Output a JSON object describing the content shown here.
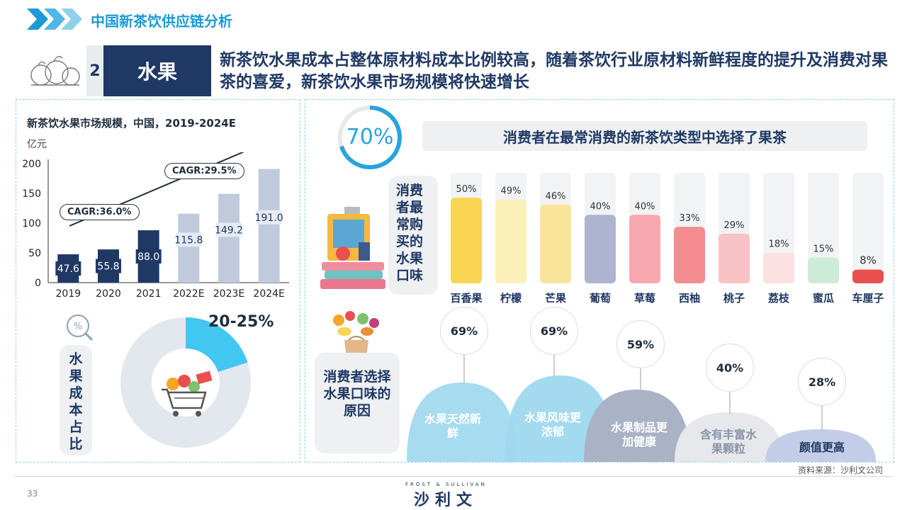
{
  "header": {
    "title": "中国新茶饮供应链分析"
  },
  "section": {
    "number": "2",
    "name": "水果"
  },
  "headline": "新茶饮水果成本占整体原材料成本比例较高，随着茶饮行业原材料新鲜程度的提升及消费对果茶的喜爱，新茶饮水果市场规模将快速增长",
  "market_chart": {
    "cagr1": "CAGR:36.0%",
    "cagr2": "CAGR:29.5%"
  },
  "cost_share": {
    "label": "水果成本占比",
    "value": "20-25%",
    "low_pct": 20,
    "high_pct": 25
  },
  "fruit_tea": {
    "percent": "70%",
    "percent_value": 70,
    "banner": "消费者在最常消费的新茶饮类型中选择了果茶"
  },
  "flavor_label": "消费者最常购买的水果口味",
  "reason_label": "消费者选择水果口味的原因",
  "reasons": [
    {
      "label": "水果天然新鲜",
      "value": "69%",
      "color": "#9fd8ee"
    },
    {
      "label": "水果风味更浓郁",
      "value": "69%",
      "color": "#9fd8ee"
    },
    {
      "label": "水果制品更加健康",
      "value": "59%",
      "color": "#aab3c6"
    },
    {
      "label": "含有丰富水果颗粒",
      "value": "40%",
      "color": "#e6e8ec"
    },
    {
      "label": "颜值更高",
      "value": "28%",
      "color": "#c4cde7"
    }
  ],
  "source": "资料来源：沙利文公司",
  "page_number": "33",
  "brand": {
    "small": "FROST & SULLIVAN",
    "name": "沙利文"
  },
  "chart_data": [
    {
      "type": "bar",
      "title": "新茶饮水果市场规模，中国，2019-2024E",
      "ylabel": "亿元",
      "categories": [
        "2019",
        "2020",
        "2021",
        "2022E",
        "2023E",
        "2024E"
      ],
      "values": [
        47.6,
        55.8,
        88.0,
        115.8,
        149.2,
        191.0
      ],
      "value_labels": [
        "47.6",
        "55.8",
        "88.0",
        "115.8",
        "149.2",
        "191.0"
      ],
      "yticks": [
        "0",
        "50",
        "100",
        "150",
        "200"
      ],
      "ylim": [
        0,
        200
      ],
      "colors": [
        "#1f3864",
        "#1f3864",
        "#1f3864",
        "#c0cadc",
        "#c0cadc",
        "#c0cadc"
      ]
    },
    {
      "type": "bar",
      "categories": [
        "百香果",
        "柠檬",
        "芒果",
        "葡萄",
        "草莓",
        "西柚",
        "桃子",
        "荔枝",
        "蜜瓜",
        "车厘子"
      ],
      "values": [
        50,
        49,
        46,
        40,
        40,
        33,
        29,
        18,
        15,
        8
      ],
      "value_labels": [
        "50%",
        "49%",
        "46%",
        "40%",
        "40%",
        "33%",
        "29%",
        "18%",
        "15%",
        "8%"
      ],
      "ylim": [
        0,
        100
      ],
      "colors": [
        "#f9d553",
        "#fbf1b8",
        "#fae49a",
        "#aeb4cf",
        "#f7a8ae",
        "#f58c8f",
        "#f9c2c4",
        "#fbe1e2",
        "#cdecd8",
        "#e94f4f"
      ]
    }
  ]
}
